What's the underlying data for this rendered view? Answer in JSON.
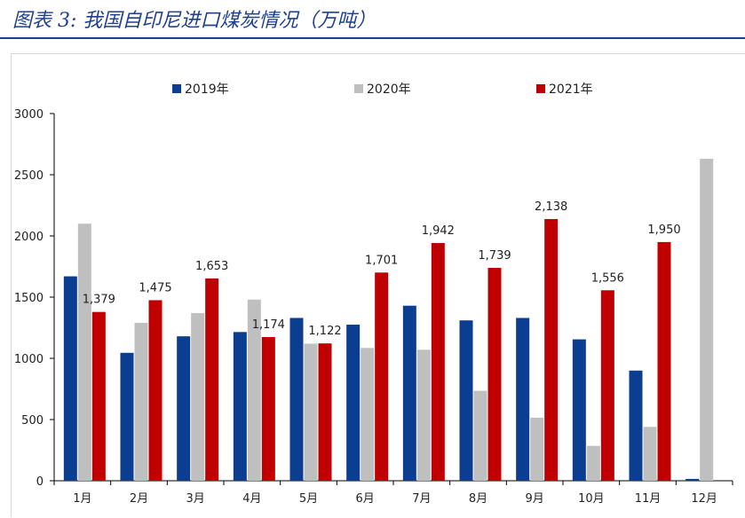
{
  "header": {
    "title": "图表 3:  我国自印尼进口煤炭情况（万吨）"
  },
  "colors": {
    "title": "#1f3f8f",
    "s2019": "#0b3d91",
    "s2020": "#bfbfbf",
    "s2021": "#c00000",
    "axis": "#000000"
  },
  "chart_data": {
    "type": "bar",
    "title": "",
    "xlabel": "",
    "ylabel": "",
    "categories": [
      "1月",
      "2月",
      "3月",
      "4月",
      "5月",
      "6月",
      "7月",
      "8月",
      "9月",
      "10月",
      "11月",
      "12月"
    ],
    "ylim": [
      0,
      3000
    ],
    "yticks": [
      0,
      500,
      1000,
      1500,
      2000,
      2500,
      3000
    ],
    "legend_position": "top",
    "grid": false,
    "series": [
      {
        "name": "2019年",
        "values": [
          1670,
          1045,
          1180,
          1215,
          1330,
          1275,
          1430,
          1310,
          1330,
          1155,
          900,
          15
        ]
      },
      {
        "name": "2020年",
        "values": [
          2100,
          1290,
          1370,
          1480,
          1120,
          1085,
          1070,
          735,
          515,
          285,
          440,
          2630
        ]
      },
      {
        "name": "2021年",
        "values": [
          1379,
          1475,
          1653,
          1174,
          1122,
          1701,
          1942,
          1739,
          2138,
          1556,
          1950,
          null
        ],
        "labels": [
          "1,379",
          "1,475",
          "1,653",
          "1,174",
          "1,122",
          "1,701",
          "1,942",
          "1,739",
          "2,138",
          "1,556",
          "1,950",
          ""
        ]
      }
    ]
  }
}
